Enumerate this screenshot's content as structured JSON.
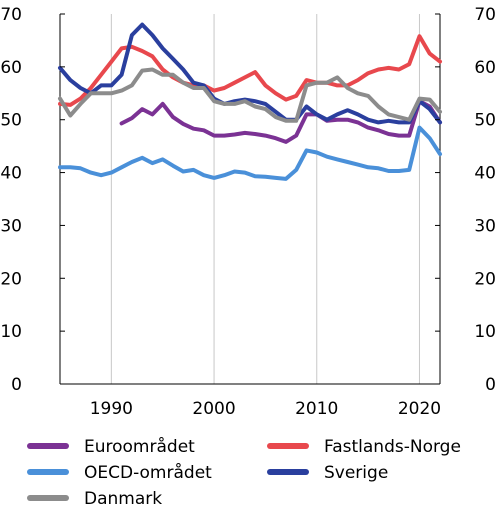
{
  "chart_data": {
    "type": "line",
    "title": "",
    "xlabel": "",
    "ylabel": "",
    "ylim": [
      0,
      70
    ],
    "xlim": [
      1985,
      2022
    ],
    "y_ticks": [
      "0",
      "10",
      "20",
      "30",
      "40",
      "50",
      "60",
      "70"
    ],
    "x_ticks": [
      "1990",
      "2000",
      "2010",
      "2020"
    ],
    "grid": "vertical",
    "right_axis_mirrors_left": true,
    "legend_position": "bottom",
    "series": [
      {
        "name": "Euroområdet",
        "color": "#7b3294",
        "points": [
          [
            1991,
            49.3
          ],
          [
            1992,
            50.3
          ],
          [
            1993,
            52.0
          ],
          [
            1994,
            51.0
          ],
          [
            1995,
            53.0
          ],
          [
            1996,
            50.5
          ],
          [
            1997,
            49.2
          ],
          [
            1998,
            48.3
          ],
          [
            1999,
            48.0
          ],
          [
            2000,
            47.0
          ],
          [
            2001,
            47.0
          ],
          [
            2002,
            47.2
          ],
          [
            2003,
            47.5
          ],
          [
            2004,
            47.3
          ],
          [
            2005,
            47.0
          ],
          [
            2006,
            46.5
          ],
          [
            2007,
            45.8
          ],
          [
            2008,
            47.0
          ],
          [
            2009,
            51.0
          ],
          [
            2010,
            51.0
          ],
          [
            2011,
            49.8
          ],
          [
            2012,
            50.0
          ],
          [
            2013,
            50.0
          ],
          [
            2014,
            49.5
          ],
          [
            2015,
            48.5
          ],
          [
            2016,
            48.0
          ],
          [
            2017,
            47.3
          ],
          [
            2018,
            47.0
          ],
          [
            2019,
            47.0
          ],
          [
            2020,
            53.5
          ],
          [
            2021,
            52.5
          ],
          [
            2022,
            49.5
          ]
        ]
      },
      {
        "name": "Fastlands-Norge",
        "color": "#e8484d",
        "points": [
          [
            1985,
            53.0
          ],
          [
            1986,
            52.8
          ],
          [
            1987,
            54.0
          ],
          [
            1988,
            56.0
          ],
          [
            1989,
            58.5
          ],
          [
            1990,
            61.0
          ],
          [
            1991,
            63.5
          ],
          [
            1992,
            63.8
          ],
          [
            1993,
            63.0
          ],
          [
            1994,
            62.0
          ],
          [
            1995,
            59.5
          ],
          [
            1996,
            58.0
          ],
          [
            1997,
            57.0
          ],
          [
            1998,
            56.5
          ],
          [
            1999,
            56.5
          ],
          [
            2000,
            55.5
          ],
          [
            2001,
            56.0
          ],
          [
            2002,
            57.0
          ],
          [
            2003,
            58.0
          ],
          [
            2004,
            59.0
          ],
          [
            2005,
            56.5
          ],
          [
            2006,
            55.0
          ],
          [
            2007,
            53.8
          ],
          [
            2008,
            54.5
          ],
          [
            2009,
            57.5
          ],
          [
            2010,
            57.0
          ],
          [
            2011,
            57.0
          ],
          [
            2012,
            56.5
          ],
          [
            2013,
            56.5
          ],
          [
            2014,
            57.5
          ],
          [
            2015,
            58.8
          ],
          [
            2016,
            59.5
          ],
          [
            2017,
            59.8
          ],
          [
            2018,
            59.5
          ],
          [
            2019,
            60.5
          ],
          [
            2020,
            65.8
          ],
          [
            2021,
            62.5
          ],
          [
            2022,
            61.0
          ]
        ]
      },
      {
        "name": "OECD-området",
        "color": "#4a90d9",
        "points": [
          [
            1985,
            41.0
          ],
          [
            1986,
            41.0
          ],
          [
            1987,
            40.8
          ],
          [
            1988,
            40.0
          ],
          [
            1989,
            39.5
          ],
          [
            1990,
            40.0
          ],
          [
            1991,
            41.0
          ],
          [
            1992,
            42.0
          ],
          [
            1993,
            42.8
          ],
          [
            1994,
            41.8
          ],
          [
            1995,
            42.5
          ],
          [
            1996,
            41.3
          ],
          [
            1997,
            40.2
          ],
          [
            1998,
            40.5
          ],
          [
            1999,
            39.5
          ],
          [
            2000,
            39.0
          ],
          [
            2001,
            39.5
          ],
          [
            2002,
            40.2
          ],
          [
            2003,
            40.0
          ],
          [
            2004,
            39.3
          ],
          [
            2005,
            39.2
          ],
          [
            2006,
            39.0
          ],
          [
            2007,
            38.8
          ],
          [
            2008,
            40.5
          ],
          [
            2009,
            44.2
          ],
          [
            2010,
            43.8
          ],
          [
            2011,
            43.0
          ],
          [
            2012,
            42.5
          ],
          [
            2013,
            42.0
          ],
          [
            2014,
            41.5
          ],
          [
            2015,
            41.0
          ],
          [
            2016,
            40.8
          ],
          [
            2017,
            40.3
          ],
          [
            2018,
            40.3
          ],
          [
            2019,
            40.5
          ],
          [
            2020,
            48.5
          ],
          [
            2021,
            46.5
          ],
          [
            2022,
            43.5
          ]
        ]
      },
      {
        "name": "Sverige",
        "color": "#2a3f9e",
        "points": [
          [
            1985,
            59.8
          ],
          [
            1986,
            57.5
          ],
          [
            1987,
            56.0
          ],
          [
            1988,
            55.0
          ],
          [
            1989,
            56.5
          ],
          [
            1990,
            56.5
          ],
          [
            1991,
            58.5
          ],
          [
            1992,
            66.0
          ],
          [
            1993,
            68.0
          ],
          [
            1994,
            66.0
          ],
          [
            1995,
            63.5
          ],
          [
            1996,
            61.5
          ],
          [
            1997,
            59.5
          ],
          [
            1998,
            57.0
          ],
          [
            1999,
            56.5
          ],
          [
            2000,
            54.0
          ],
          [
            2001,
            53.0
          ],
          [
            2002,
            53.5
          ],
          [
            2003,
            53.8
          ],
          [
            2004,
            53.5
          ],
          [
            2005,
            53.0
          ],
          [
            2006,
            51.5
          ],
          [
            2007,
            50.0
          ],
          [
            2008,
            50.0
          ],
          [
            2009,
            52.5
          ],
          [
            2010,
            51.0
          ],
          [
            2011,
            50.0
          ],
          [
            2012,
            51.0
          ],
          [
            2013,
            51.8
          ],
          [
            2014,
            51.0
          ],
          [
            2015,
            50.0
          ],
          [
            2016,
            49.5
          ],
          [
            2017,
            49.8
          ],
          [
            2018,
            49.5
          ],
          [
            2019,
            49.5
          ],
          [
            2020,
            53.5
          ],
          [
            2021,
            52.0
          ],
          [
            2022,
            49.5
          ]
        ]
      },
      {
        "name": "Danmark",
        "color": "#8c8c8c",
        "points": [
          [
            1985,
            54.0
          ],
          [
            1986,
            50.8
          ],
          [
            1987,
            53.0
          ],
          [
            1988,
            55.0
          ],
          [
            1989,
            55.0
          ],
          [
            1990,
            55.0
          ],
          [
            1991,
            55.5
          ],
          [
            1992,
            56.5
          ],
          [
            1993,
            59.3
          ],
          [
            1994,
            59.5
          ],
          [
            1995,
            58.5
          ],
          [
            1996,
            58.5
          ],
          [
            1997,
            57.0
          ],
          [
            1998,
            56.0
          ],
          [
            1999,
            56.0
          ],
          [
            2000,
            53.5
          ],
          [
            2001,
            53.0
          ],
          [
            2002,
            53.0
          ],
          [
            2003,
            53.5
          ],
          [
            2004,
            52.5
          ],
          [
            2005,
            52.0
          ],
          [
            2006,
            50.5
          ],
          [
            2007,
            49.8
          ],
          [
            2008,
            49.8
          ],
          [
            2009,
            56.5
          ],
          [
            2010,
            57.0
          ],
          [
            2011,
            57.0
          ],
          [
            2012,
            58.0
          ],
          [
            2013,
            56.0
          ],
          [
            2014,
            55.0
          ],
          [
            2015,
            54.5
          ],
          [
            2016,
            52.5
          ],
          [
            2017,
            51.0
          ],
          [
            2018,
            50.5
          ],
          [
            2019,
            50.0
          ],
          [
            2020,
            54.0
          ],
          [
            2021,
            53.8
          ],
          [
            2022,
            51.5
          ]
        ]
      }
    ],
    "legend": [
      {
        "name": "Euroområdet",
        "color": "#7b3294"
      },
      {
        "name": "Fastlands-Norge",
        "color": "#e8484d"
      },
      {
        "name": "OECD-området",
        "color": "#4a90d9"
      },
      {
        "name": "Sverige",
        "color": "#2a3f9e"
      },
      {
        "name": "Danmark",
        "color": "#8c8c8c"
      }
    ]
  }
}
